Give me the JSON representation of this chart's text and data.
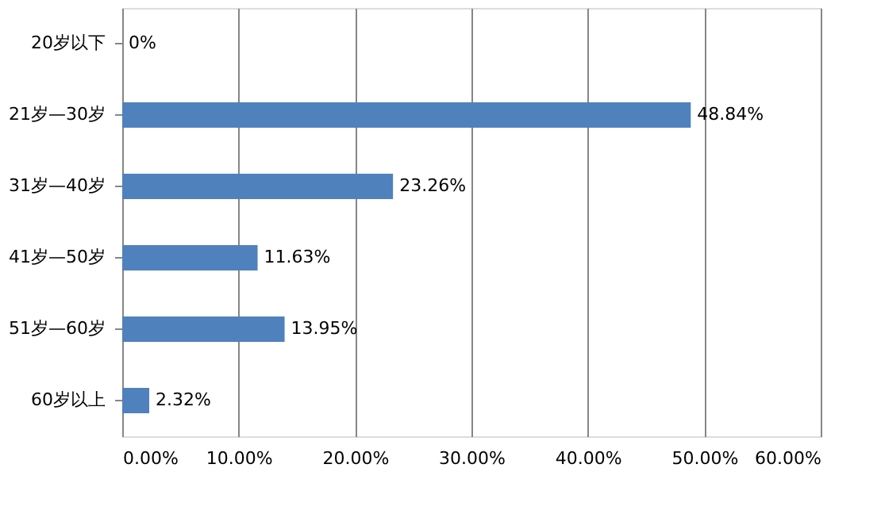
{
  "chart_data": {
    "type": "bar",
    "orientation": "horizontal",
    "categories": [
      "20岁以下",
      "21岁—30岁",
      "31岁—40岁",
      "41岁—50岁",
      "51岁—60岁",
      "60岁以上"
    ],
    "values": [
      0,
      48.84,
      23.26,
      11.63,
      13.95,
      2.32
    ],
    "value_labels": [
      "0%",
      "48.84%",
      "23.26%",
      "11.63%",
      "13.95%",
      "2.32%"
    ],
    "color": "#4f81bd",
    "xlim": [
      0,
      60
    ],
    "xticks": [
      {
        "value": 0,
        "label": "0.00%"
      },
      {
        "value": 10,
        "label": "10.00%"
      },
      {
        "value": 20,
        "label": "20.00%"
      },
      {
        "value": 30,
        "label": "30.00%"
      },
      {
        "value": 40,
        "label": "40.00%"
      },
      {
        "value": 50,
        "label": "50.00%"
      },
      {
        "value": 60,
        "label": "60.00%"
      }
    ],
    "grid": "x"
  }
}
